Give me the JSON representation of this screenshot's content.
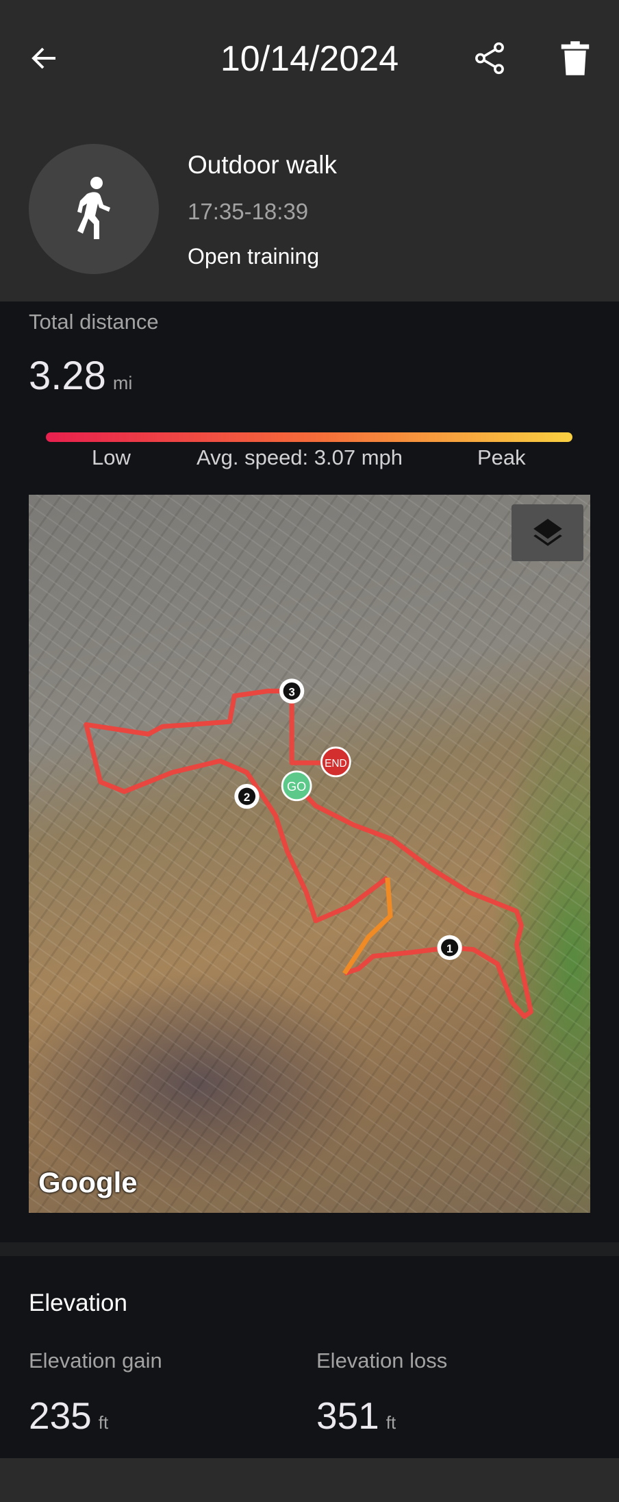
{
  "header": {
    "title": "10/14/2024",
    "back_icon": "arrow-left-icon",
    "share_icon": "share-icon",
    "delete_icon": "trash-icon"
  },
  "activity": {
    "name": "Outdoor walk",
    "time": "17:35-18:39",
    "type": "Open training",
    "icon": "walking-person-icon"
  },
  "distance": {
    "label": "Total distance",
    "value": "3.28",
    "unit": "mi"
  },
  "speed": {
    "low_label": "Low",
    "avg_label": "Avg. speed: 3.07 mph",
    "peak_label": "Peak",
    "colors": [
      "#e8204e",
      "#f56a3a",
      "#f9d041"
    ]
  },
  "map": {
    "logo": "Google",
    "layers_icon": "layers-icon",
    "route_color": "#e8463f",
    "route_highlight": "#f08a24",
    "markers": {
      "go": "GO",
      "end": "END",
      "m1": "1",
      "m2": "2",
      "m3": "3"
    }
  },
  "elevation": {
    "title": "Elevation",
    "gain_label": "Elevation gain",
    "gain_value": "235",
    "gain_unit": "ft",
    "loss_label": "Elevation loss",
    "loss_value": "351",
    "loss_unit": "ft"
  }
}
